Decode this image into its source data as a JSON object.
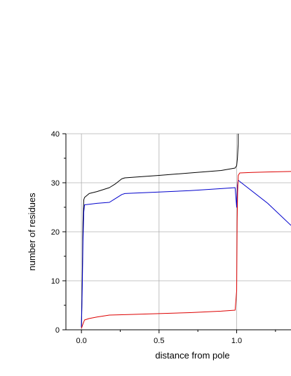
{
  "chart_data": {
    "type": "line",
    "title": "",
    "xlabel": "distance from pole",
    "ylabel": "number of residues",
    "xlim": [
      -0.1,
      1.35
    ],
    "ylim": [
      0,
      40
    ],
    "x_ticks": [
      0.0,
      0.5,
      1.0
    ],
    "x_tick_labels": [
      "0.0",
      "0.5",
      "1.0"
    ],
    "y_ticks": [
      0,
      10,
      20,
      30,
      40
    ],
    "y_tick_labels": [
      "0",
      "10",
      "20",
      "30",
      "40"
    ],
    "grid": true,
    "legend": "none",
    "series": [
      {
        "color": "#000000",
        "x": [
          0.0,
          0.005,
          0.01,
          0.015,
          0.02,
          0.05,
          0.1,
          0.18,
          0.22,
          0.26,
          0.28,
          0.5,
          0.7,
          0.9,
          0.99,
          1.0,
          1.005,
          1.01,
          1.01
        ],
        "y": [
          0.5,
          10,
          22,
          26.5,
          27,
          27.8,
          28.2,
          29,
          29.8,
          30.8,
          31,
          31.5,
          32,
          32.5,
          33,
          33.5,
          35,
          38,
          40
        ]
      },
      {
        "color": "#0000cc",
        "x": [
          0.0,
          0.005,
          0.01,
          0.015,
          0.02,
          0.05,
          0.1,
          0.18,
          0.22,
          0.26,
          0.28,
          0.5,
          0.7,
          0.9,
          0.99,
          1.0,
          1.005,
          1.01,
          1.2,
          1.35
        ],
        "y": [
          0.5,
          8,
          18,
          24,
          25.5,
          25.6,
          25.8,
          26,
          26.8,
          27.6,
          27.8,
          28.1,
          28.4,
          28.8,
          29,
          25,
          29.5,
          30.5,
          25.8,
          21.3
        ]
      },
      {
        "color": "#dd0000",
        "x": [
          0.0,
          0.01,
          0.02,
          0.05,
          0.1,
          0.18,
          0.3,
          0.5,
          0.7,
          0.9,
          0.99,
          1.0,
          1.003,
          1.006,
          1.01,
          1.02,
          1.1,
          1.2,
          1.35
        ],
        "y": [
          0.3,
          1.2,
          2,
          2.3,
          2.6,
          3,
          3.1,
          3.3,
          3.5,
          3.8,
          4,
          8,
          22,
          28,
          31.5,
          32,
          32.1,
          32.2,
          32.3
        ]
      }
    ]
  }
}
